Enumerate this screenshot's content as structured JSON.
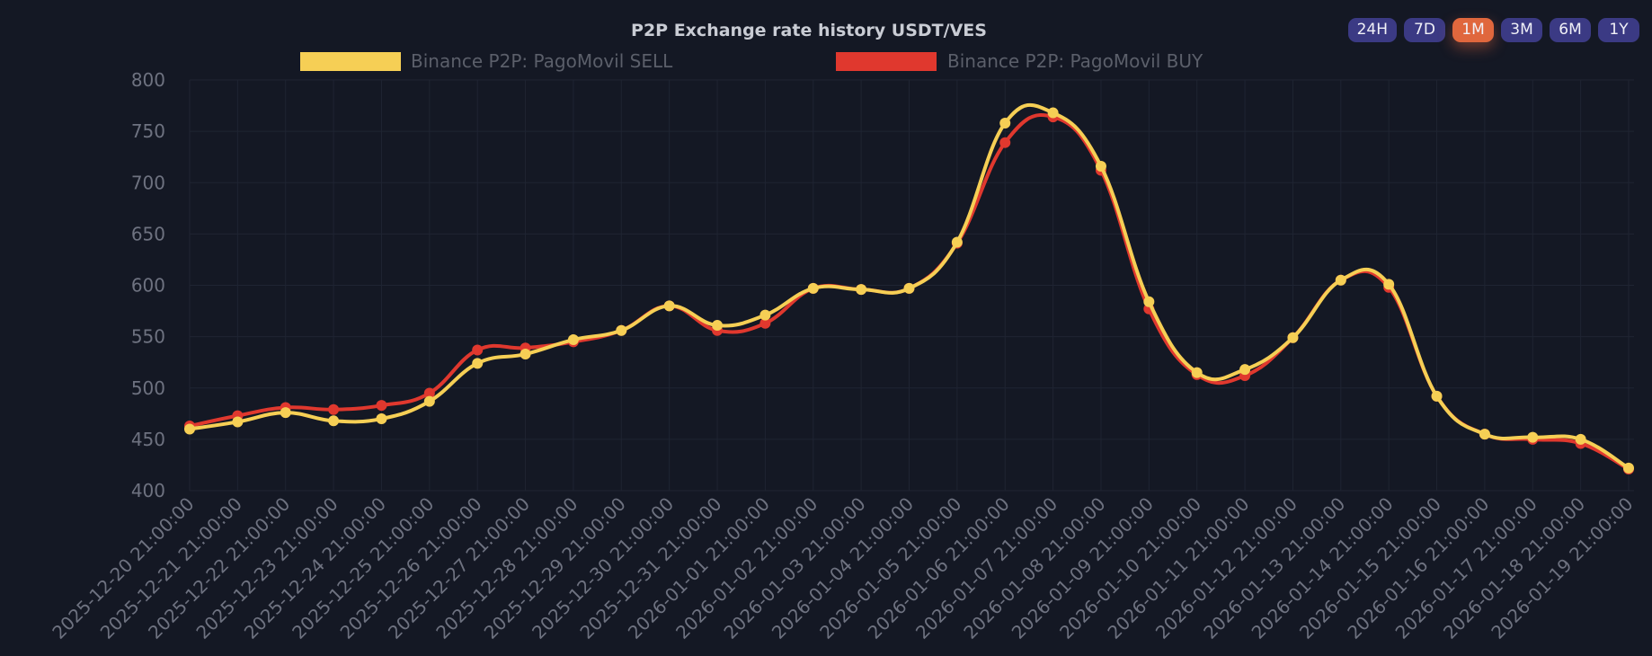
{
  "range_buttons": [
    {
      "label": "24H",
      "active": false
    },
    {
      "label": "7D",
      "active": false
    },
    {
      "label": "1M",
      "active": true
    },
    {
      "label": "3M",
      "active": false
    },
    {
      "label": "6M",
      "active": false
    },
    {
      "label": "1Y",
      "active": false
    }
  ],
  "colors": {
    "background": "#141824",
    "grid": "#1f2432",
    "tick_text": "#6e7280",
    "title_text": "#c9ccd4",
    "sell": "#f6cf55",
    "buy": "#e0382e",
    "button_bg": "#3b3a84",
    "button_active": "#e0673d"
  },
  "chart_data": {
    "type": "line",
    "title": "P2P Exchange rate history USDT/VES",
    "xlabel": "",
    "ylabel": "",
    "ylim": [
      400,
      800
    ],
    "yticks": [
      400,
      450,
      500,
      550,
      600,
      650,
      700,
      750,
      800
    ],
    "grid": true,
    "legend_position": "top-center",
    "x": [
      "2025-12-20 21:00:00",
      "2025-12-21 21:00:00",
      "2025-12-22 21:00:00",
      "2025-12-23 21:00:00",
      "2025-12-24 21:00:00",
      "2025-12-25 21:00:00",
      "2025-12-26 21:00:00",
      "2025-12-27 21:00:00",
      "2025-12-28 21:00:00",
      "2025-12-29 21:00:00",
      "2025-12-30 21:00:00",
      "2025-12-31 21:00:00",
      "2026-01-01 21:00:00",
      "2026-01-02 21:00:00",
      "2026-01-03 21:00:00",
      "2026-01-04 21:00:00",
      "2026-01-05 21:00:00",
      "2026-01-06 21:00:00",
      "2026-01-07 21:00:00",
      "2026-01-08 21:00:00",
      "2026-01-09 21:00:00",
      "2026-01-10 21:00:00",
      "2026-01-11 21:00:00",
      "2026-01-12 21:00:00",
      "2026-01-13 21:00:00",
      "2026-01-14 21:00:00",
      "2026-01-15 21:00:00",
      "2026-01-16 21:00:00",
      "2026-01-17 21:00:00",
      "2026-01-18 21:00:00",
      "2026-01-19 21:00:00"
    ],
    "series": [
      {
        "name": "Binance P2P: PagoMovil SELL",
        "color": "#f6cf55",
        "values": [
          460,
          467,
          476,
          468,
          470,
          487,
          524,
          533,
          547,
          556,
          580,
          561,
          571,
          597,
          596,
          597,
          642,
          758,
          768,
          716,
          584,
          515,
          518,
          549,
          605,
          601,
          492,
          455,
          452,
          450,
          422
        ]
      },
      {
        "name": "Binance P2P: PagoMovil BUY",
        "color": "#e0382e",
        "values": [
          463,
          473,
          481,
          479,
          483,
          495,
          537,
          539,
          545,
          556,
          580,
          556,
          563,
          597,
          596,
          597,
          641,
          739,
          764,
          712,
          577,
          513,
          512,
          549,
          605,
          598,
          492,
          455,
          450,
          446,
          421
        ]
      }
    ]
  }
}
